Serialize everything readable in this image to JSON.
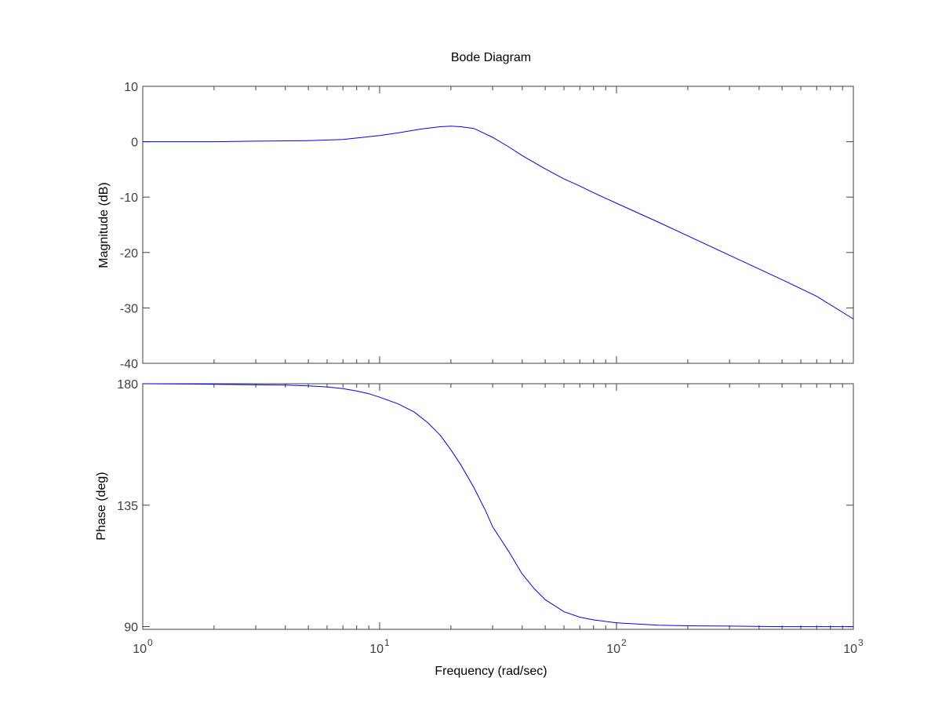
{
  "chart_data": {
    "type": "line",
    "title": "Bode Diagram",
    "xlabel": "Frequency  (rad/sec)",
    "xscale": "log",
    "xlim": [
      1,
      1000
    ],
    "x_ticks": [
      {
        "value": 1,
        "base": "10",
        "exp": "0"
      },
      {
        "value": 10,
        "base": "10",
        "exp": "1"
      },
      {
        "value": 100,
        "base": "10",
        "exp": "2"
      },
      {
        "value": 1000,
        "base": "10",
        "exp": "3"
      }
    ],
    "grid": false,
    "line_color": "#0000ff",
    "panels": [
      {
        "ylabel": "Magnitude (dB)",
        "ylim": [
          -40,
          10
        ],
        "yticks": [
          10,
          0,
          -10,
          -20,
          -30,
          -40
        ],
        "ytick_labels": [
          "10",
          "0",
          "-10",
          "-20",
          "-30",
          "-40"
        ],
        "series": [
          {
            "x": [
              1,
              2,
              3,
              5,
              7,
              10,
              12,
              15,
              18,
              20,
              22,
              25,
              30,
              35,
              40,
              50,
              60,
              70,
              80,
              100,
              150,
              200,
              300,
              500,
              700,
              1000
            ],
            "y": [
              0,
              0,
              0.1,
              0.2,
              0.4,
              1.1,
              1.6,
              2.3,
              2.7,
              2.8,
              2.7,
              2.4,
              0.8,
              -0.9,
              -2.5,
              -4.9,
              -6.7,
              -8.0,
              -9.2,
              -11.1,
              -14.5,
              -17.0,
              -20.5,
              -24.9,
              -27.9,
              -32.0
            ]
          }
        ]
      },
      {
        "ylabel": "Phase (deg)",
        "ylim": [
          89,
          180
        ],
        "yticks": [
          180,
          135,
          90
        ],
        "ytick_labels": [
          "180",
          "135",
          "90"
        ],
        "series": [
          {
            "x": [
              1,
              2,
              3,
              4,
              5,
              6,
              7,
              8,
              9,
              10,
              12,
              14,
              16,
              18,
              20,
              22,
              25,
              28,
              30,
              35,
              40,
              45,
              50,
              60,
              70,
              80,
              100,
              150,
              200,
              300,
              500,
              700,
              1000
            ],
            "y": [
              180,
              179.8,
              179.6,
              179.5,
              179.2,
              178.8,
              178.2,
              177.3,
              176.3,
              175.0,
              172.5,
              169.5,
              165.5,
              161.0,
              155.5,
              150.0,
              141.5,
              133.0,
              127.0,
              118.0,
              109.5,
              104.0,
              100.0,
              95.5,
              93.5,
              92.5,
              91.4,
              90.5,
              90.3,
              90.2,
              90.0,
              90.0,
              90.0
            ]
          }
        ]
      }
    ]
  }
}
